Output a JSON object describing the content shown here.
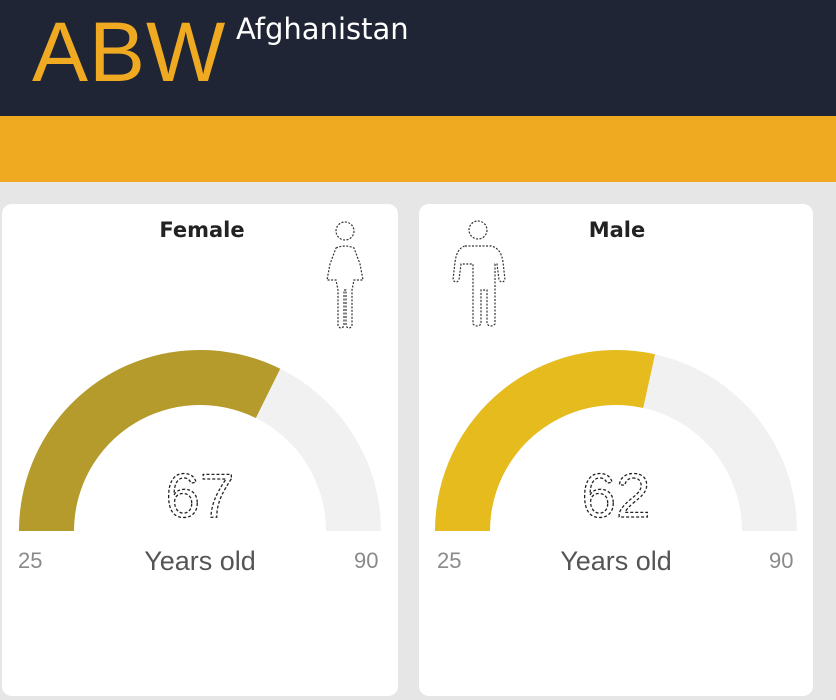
{
  "header": {
    "code": "ABW",
    "country": "Afghanistan"
  },
  "colors": {
    "navy": "#1f2535",
    "accent": "#efaa22",
    "female_fill": "#b59a2c",
    "male_fill": "#e6bb1e",
    "track": "#f1f1f1"
  },
  "chart_data": [
    {
      "type": "gauge",
      "title": "Female",
      "icon": "female-person-icon",
      "value": 67,
      "min": 25,
      "max": 90,
      "unit": "Years old",
      "color": "#b59a2c"
    },
    {
      "type": "gauge",
      "title": "Male",
      "icon": "male-person-icon",
      "value": 62,
      "min": 25,
      "max": 90,
      "unit": "Years old",
      "color": "#e6bb1e"
    }
  ]
}
